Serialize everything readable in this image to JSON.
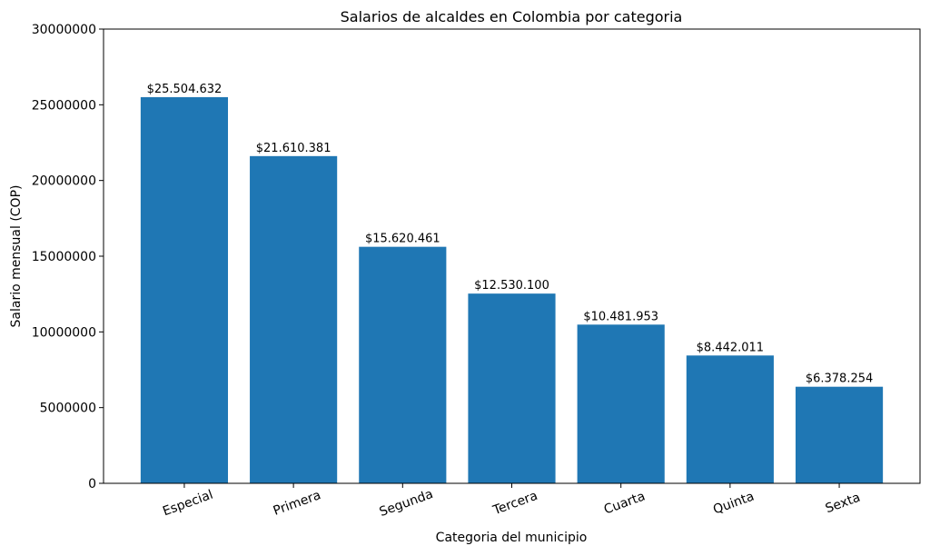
{
  "chart_data": {
    "type": "bar",
    "title": "Salarios de alcaldes en Colombia por categoria",
    "xlabel": "Categoria del municipio",
    "ylabel": "Salario mensual (COP)",
    "categories": [
      "Especial",
      "Primera",
      "Segunda",
      "Tercera",
      "Cuarta",
      "Quinta",
      "Sexta"
    ],
    "values": [
      25504632,
      21610381,
      15620461,
      12530100,
      10481953,
      8442011,
      6378254
    ],
    "data_labels": [
      "$25.504.632",
      "$21.610.381",
      "$15.620.461",
      "$12.530.100",
      "$10.481.953",
      "$8.442.011",
      "$6.378.254"
    ],
    "ylim": [
      0,
      30000000
    ],
    "yticks": [
      "0",
      "5000000",
      "10000000",
      "15000000",
      "20000000",
      "25000000",
      "30000000"
    ],
    "xtick_rotation_deg": 20,
    "grid": false,
    "bar_color": "#1f77b4"
  }
}
